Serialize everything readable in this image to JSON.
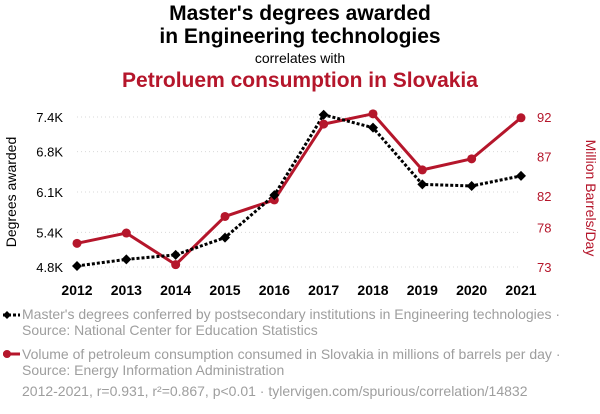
{
  "title": {
    "line1": "Master's degrees awarded",
    "line2": "in Engineering technologies",
    "correlates": "correlates with",
    "line3": "Petroluem consumption in Slovakia"
  },
  "colors": {
    "series1": "#000000",
    "series2": "#b5162b",
    "legend_text": "#9e9e9e"
  },
  "legend": [
    {
      "text": "Master's degrees conferred by postsecondary institutions in Engineering technologies · Source: National Center for Education Statistics"
    },
    {
      "text": "Volume of petroleum consumption consumed in Slovakia in millions of barrels per day · Source: Energy Information Administration"
    }
  ],
  "footer": "2012-2021, r=0.931, r²=0.867, p<0.01 · tylervigen.com/spurious/correlation/14832",
  "chart_data": {
    "type": "line",
    "categories": [
      "2012",
      "2013",
      "2014",
      "2015",
      "2016",
      "2017",
      "2018",
      "2019",
      "2020",
      "2021"
    ],
    "y_left": {
      "label": "Degrees awarded",
      "ticks": [
        "4.8K",
        "5.4K",
        "6.1K",
        "6.8K",
        "7.4K"
      ],
      "tick_values": [
        4800,
        5400,
        6100,
        6800,
        7400
      ],
      "range": [
        4800,
        7400
      ]
    },
    "y_right": {
      "label": "Million Barrels/Day",
      "ticks": [
        "73",
        "78",
        "82",
        "87",
        "92"
      ],
      "tick_values": [
        73,
        78,
        82,
        87,
        92
      ],
      "range": [
        73,
        92
      ]
    },
    "series": [
      {
        "axis": "left",
        "style": "dotted",
        "marker": "diamond",
        "values": [
          4818,
          4932,
          5010,
          5310,
          6045,
          7438,
          7215,
          6232,
          6205,
          6379
        ]
      },
      {
        "axis": "right",
        "style": "solid",
        "marker": "circle",
        "values": [
          76.0,
          77.3,
          73.3,
          79.4,
          81.5,
          91.1,
          92.4,
          85.3,
          86.7,
          91.9
        ]
      }
    ],
    "grid": "horizontal dotted",
    "legend_position": "bottom"
  }
}
